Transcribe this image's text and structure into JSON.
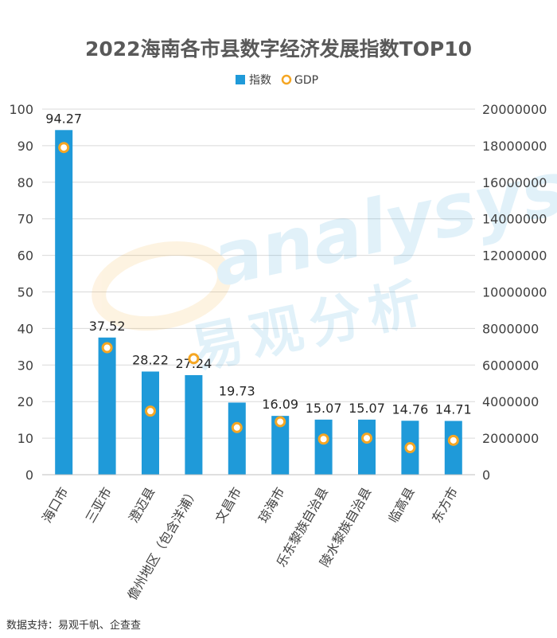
{
  "chart_data": {
    "type": "bar",
    "title": "2022海南各市县数字经济发展指数TOP10",
    "categories": [
      "海口市",
      "三亚市",
      "澄迈县",
      "儋州地区（包含洋浦）",
      "文昌市",
      "琼海市",
      "乐东黎族自治县",
      "陵水黎族自治县",
      "临高县",
      "东方市"
    ],
    "series": [
      {
        "name": "指数",
        "type": "bar",
        "axis": "left",
        "color": "#1f9ad9",
        "values": [
          94.27,
          37.52,
          28.22,
          27.24,
          19.73,
          16.09,
          15.07,
          15.07,
          14.76,
          14.71
        ]
      },
      {
        "name": "GDP",
        "type": "scatter",
        "axis": "right",
        "color": "#f5a623",
        "values": [
          17900000,
          6950000,
          3480000,
          6350000,
          2580000,
          2900000,
          1950000,
          2000000,
          1480000,
          1880000
        ]
      }
    ],
    "ylim_left": [
      0,
      100
    ],
    "yticks_left": [
      0,
      10,
      20,
      30,
      40,
      50,
      60,
      70,
      80,
      90,
      100
    ],
    "ylim_right": [
      0,
      20000000
    ],
    "yticks_right": [
      0,
      2000000,
      4000000,
      6000000,
      8000000,
      10000000,
      12000000,
      14000000,
      16000000,
      18000000,
      20000000
    ],
    "legend_position": "top-center",
    "grid": true
  },
  "watermark": {
    "line1": "analysys",
    "line2": "易观分析"
  },
  "source_text": "数据支持：易观千帆、企查查"
}
